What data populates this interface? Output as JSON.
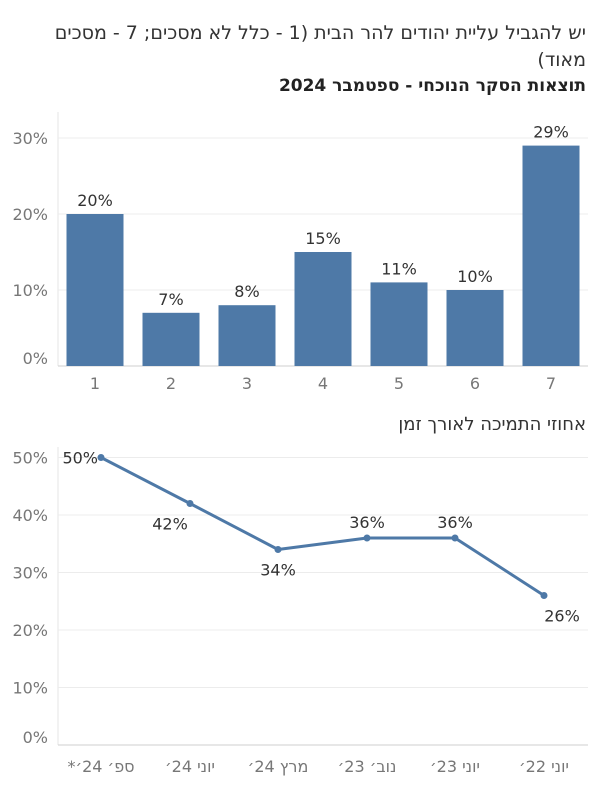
{
  "title": "יש להגביל עליית יהודים להר הבית (1 - כלל לא מסכים; 7 - מסכים מאוד)",
  "chart_data": [
    {
      "type": "bar",
      "title": "תוצאות הסקר הנוכחי - ספטמבר 2024",
      "categories": [
        "1",
        "2",
        "3",
        "4",
        "5",
        "6",
        "7"
      ],
      "values": [
        20,
        7,
        8,
        15,
        11,
        10,
        29
      ],
      "value_labels": [
        "20%",
        "7%",
        "8%",
        "15%",
        "11%",
        "10%",
        "29%"
      ],
      "yticks": [
        "0%",
        "10%",
        "20%",
        "30%"
      ],
      "ylim": [
        0,
        32
      ],
      "grid": true,
      "color": "#4e79a7"
    },
    {
      "type": "line",
      "title": "אחוזי התמיכה לאורך זמן",
      "categories": [
        "ספ׳ 24׳*",
        "יוני 24׳",
        "מרץ 24׳",
        "נוב׳ 23׳",
        "יוני 23׳",
        "יוני 22׳"
      ],
      "values": [
        50,
        42,
        34,
        36,
        36,
        26
      ],
      "value_labels": [
        "50%",
        "42%",
        "34%",
        "36%",
        "36%",
        "26%"
      ],
      "yticks": [
        "0%",
        "10%",
        "20%",
        "30%",
        "40%",
        "50%"
      ],
      "ylim": [
        0,
        52
      ],
      "grid": true,
      "color": "#4e79a7"
    }
  ]
}
